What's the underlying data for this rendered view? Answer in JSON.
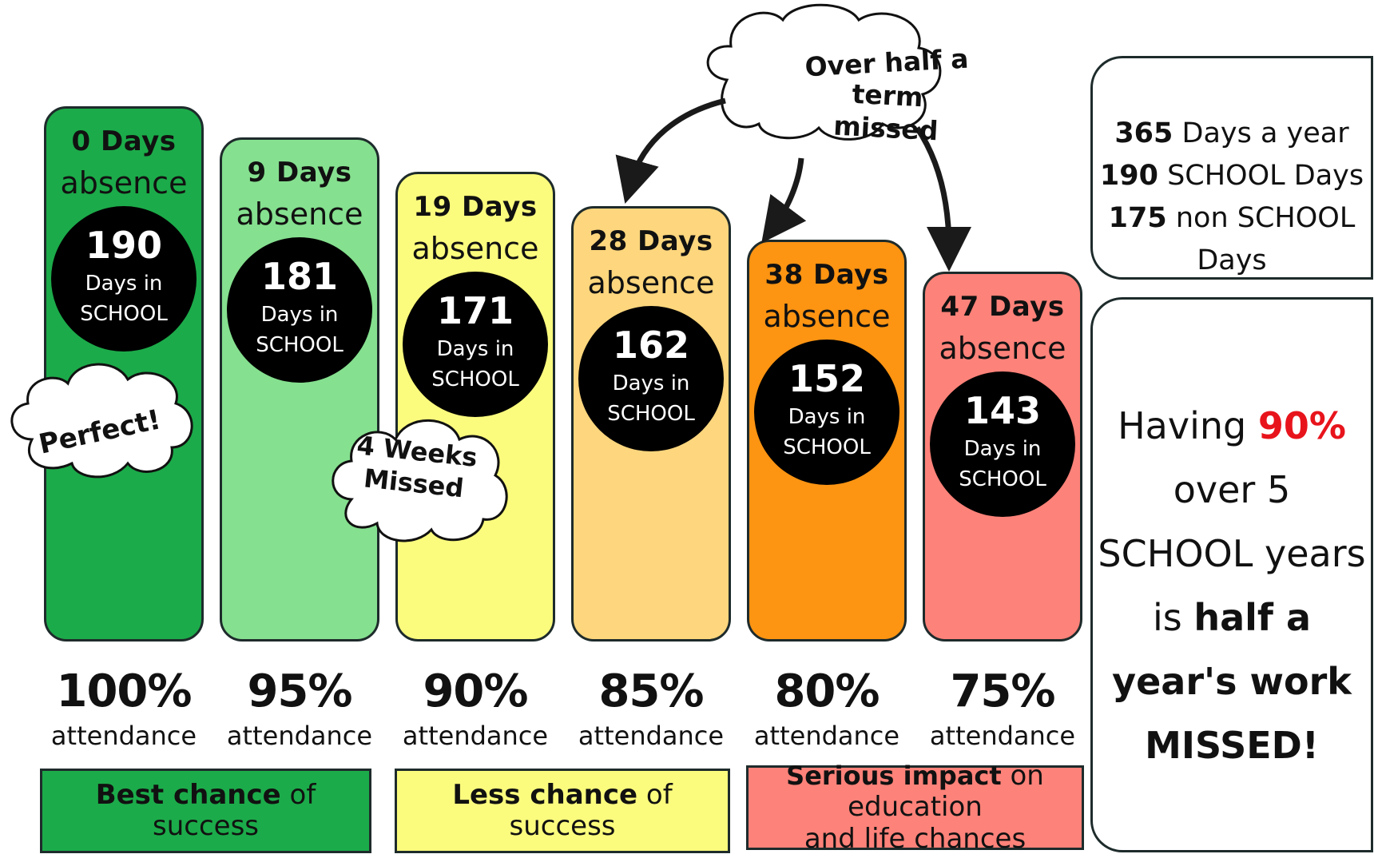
{
  "columns": [
    {
      "title": "0 Days",
      "subtitle": "absence",
      "days": "190",
      "days_label1": "Days in",
      "days_label2": "SCHOOL",
      "percent": "100%",
      "attendance": "attendance",
      "color": "#1cab4a"
    },
    {
      "title": "9 Days",
      "subtitle": "absence",
      "days": "181",
      "days_label1": "Days in",
      "days_label2": "SCHOOL",
      "percent": "95%",
      "attendance": "attendance",
      "color": "#85e08f"
    },
    {
      "title": "19 Days",
      "subtitle": "absence",
      "days": "171",
      "days_label1": "Days in",
      "days_label2": "SCHOOL",
      "percent": "90%",
      "attendance": "attendance",
      "color": "#fbfb7d"
    },
    {
      "title": "28 Days",
      "subtitle": "absence",
      "days": "162",
      "days_label1": "Days in",
      "days_label2": "SCHOOL",
      "percent": "85%",
      "attendance": "attendance",
      "color": "#fdd67d"
    },
    {
      "title": "38 Days",
      "subtitle": "absence",
      "days": "152",
      "days_label1": "Days in",
      "days_label2": "SCHOOL",
      "percent": "80%",
      "attendance": "attendance",
      "color": "#fd9412"
    },
    {
      "title": "47 Days",
      "subtitle": "absence",
      "days": "143",
      "days_label1": "Days in",
      "days_label2": "SCHOOL",
      "percent": "75%",
      "attendance": "attendance",
      "color": "#fd8279"
    }
  ],
  "clouds": {
    "perfect": "Perfect!",
    "four_weeks_1": "4 Weeks",
    "four_weeks_2": "Missed",
    "half_term_1": "Over half a",
    "half_term_2": "term missed"
  },
  "bands": {
    "best": {
      "bold": "Best chance",
      "rest": " of success",
      "color": "#1cab4a"
    },
    "less": {
      "bold": "Less chance",
      "rest": " of success",
      "color": "#fbfb7d"
    },
    "serious": {
      "bold": "Serious impact",
      "rest": " on education",
      "line2": "and life chances",
      "color": "#fd8279"
    }
  },
  "year_info": {
    "line1_num": "365",
    "line1_text": " Days a year",
    "line2_num": "190",
    "line2_text": " SCHOOL Days",
    "line3_num": "175",
    "line3_text": " non SCHOOL Days"
  },
  "summary": {
    "having": "Having ",
    "highlight": "90%",
    "highlight_color": "#e8141c",
    "line2": "over 5",
    "line3": "SCHOOL years",
    "line4_plain": "is ",
    "line4_bold": "half a",
    "line5": "year's work",
    "line6": "MISSED!"
  }
}
